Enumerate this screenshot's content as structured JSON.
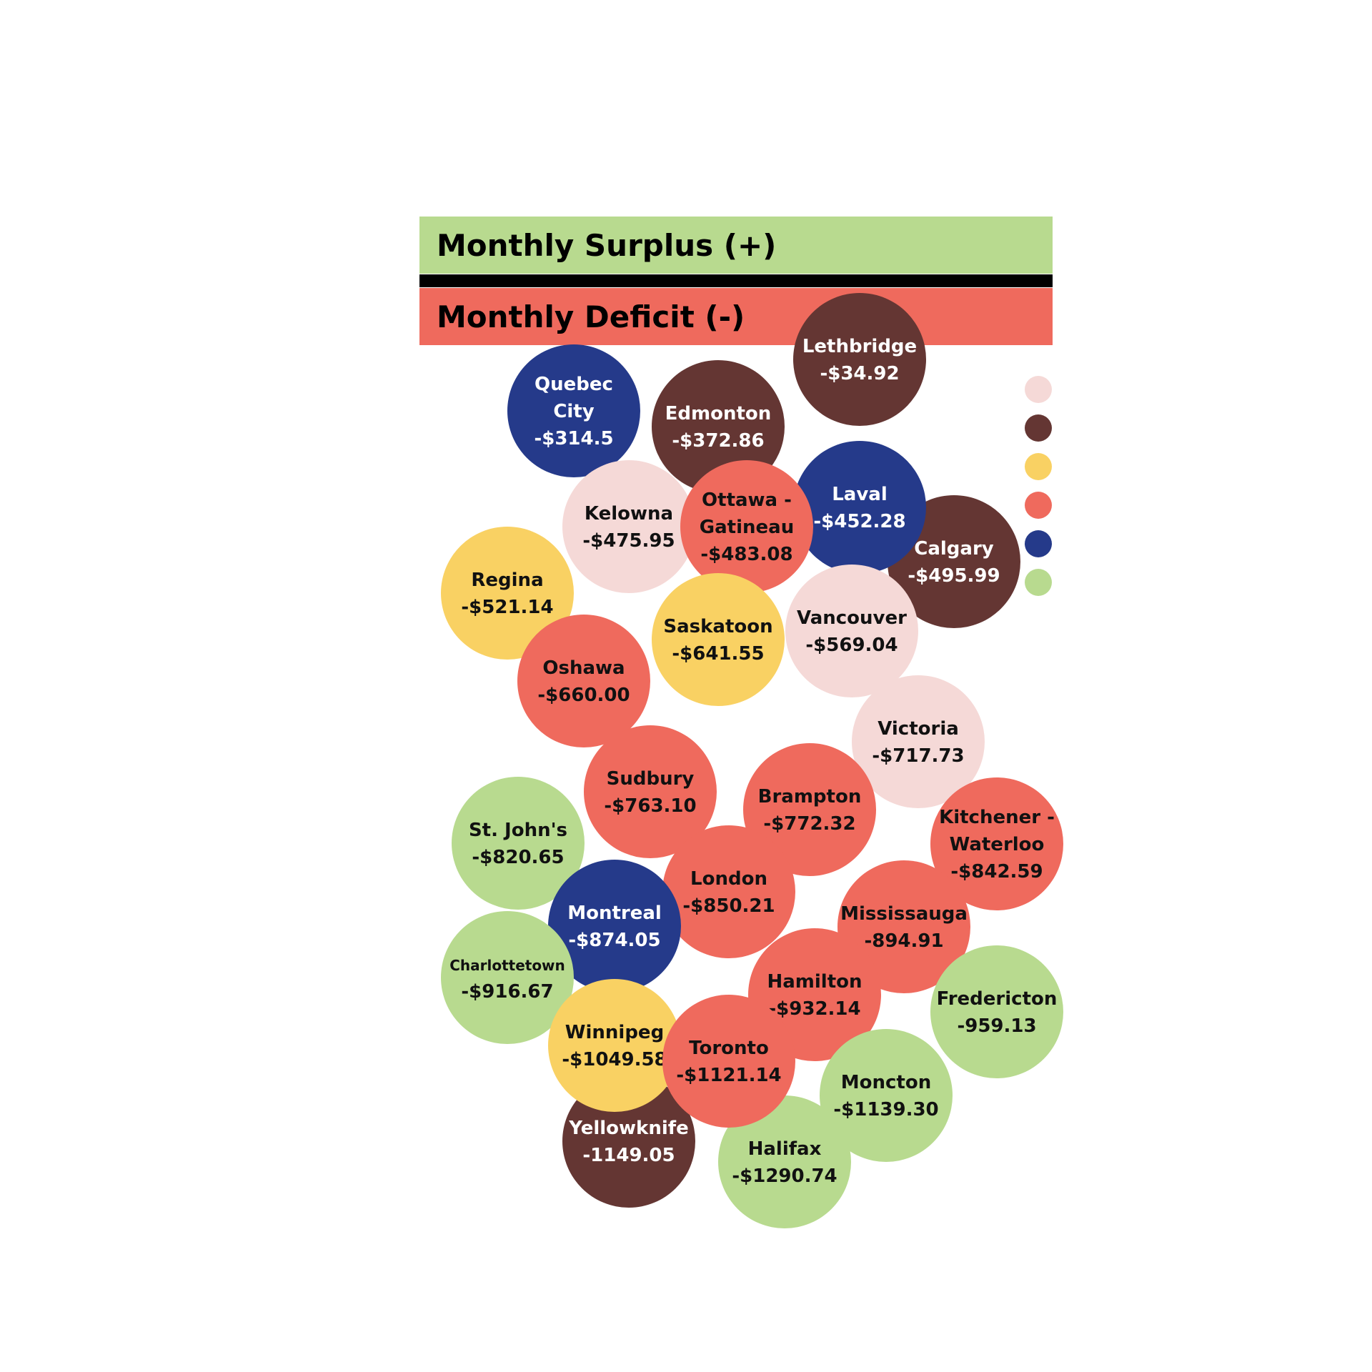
{
  "header": {
    "surplus_label": "Monthly Surplus (+)",
    "deficit_label": "Monthly Deficit (-)"
  },
  "colors": {
    "surplus": "#b8da8f",
    "deficit": "#ef6a5d",
    "divider": "#000000",
    "light_pink": "#f5d9d7",
    "brown": "#643633",
    "yellow": "#f9d163",
    "salmon": "#ef6a5d",
    "navy": "#253a8a",
    "green": "#b8da8f"
  },
  "legend": {
    "swatches": [
      "light_pink",
      "brown",
      "yellow",
      "salmon",
      "navy",
      "green"
    ]
  },
  "chart_data": {
    "type": "bubble",
    "title": "",
    "bubbles": [
      {
        "name": "Lethbridge",
        "label": "-$34.92",
        "value": -34.92,
        "color": "brown"
      },
      {
        "name": "Quebec City",
        "label": "-$314.5",
        "value": -314.5,
        "color": "navy"
      },
      {
        "name": "Edmonton",
        "label": "-$372.86",
        "value": -372.86,
        "color": "brown"
      },
      {
        "name": "Laval",
        "label": "-$452.28",
        "value": -452.28,
        "color": "navy"
      },
      {
        "name": "Kelowna",
        "label": "-$475.95",
        "value": -475.95,
        "color": "light_pink"
      },
      {
        "name": "Ottawa - Gatineau",
        "label": "-$483.08",
        "value": -483.08,
        "color": "salmon"
      },
      {
        "name": "Calgary",
        "label": "-$495.99",
        "value": -495.99,
        "color": "brown"
      },
      {
        "name": "Regina",
        "label": "-$521.14",
        "value": -521.14,
        "color": "yellow"
      },
      {
        "name": "Vancouver",
        "label": "-$569.04",
        "value": -569.04,
        "color": "light_pink"
      },
      {
        "name": "Saskatoon",
        "label": "-$641.55",
        "value": -641.55,
        "color": "yellow"
      },
      {
        "name": "Oshawa",
        "label": "-$660.00",
        "value": -660.0,
        "color": "salmon"
      },
      {
        "name": "Victoria",
        "label": "-$717.73",
        "value": -717.73,
        "color": "light_pink"
      },
      {
        "name": "Sudbury",
        "label": "-$763.10",
        "value": -763.1,
        "color": "salmon"
      },
      {
        "name": "Brampton",
        "label": "-$772.32",
        "value": -772.32,
        "color": "salmon"
      },
      {
        "name": "St. John's",
        "label": "-$820.65",
        "value": -820.65,
        "color": "green"
      },
      {
        "name": "Kitchener - Waterloo",
        "label": "-$842.59",
        "value": -842.59,
        "color": "salmon"
      },
      {
        "name": "London",
        "label": "-$850.21",
        "value": -850.21,
        "color": "salmon"
      },
      {
        "name": "Montreal",
        "label": "-$874.05",
        "value": -874.05,
        "color": "navy"
      },
      {
        "name": "Mississauga",
        "label": "-894.91",
        "value": -894.91,
        "color": "salmon"
      },
      {
        "name": "Charlottetown",
        "label": "-$916.67",
        "value": -916.67,
        "color": "green"
      },
      {
        "name": "Hamilton",
        "label": "-$932.14",
        "value": -932.14,
        "color": "salmon"
      },
      {
        "name": "Fredericton",
        "label": "-959.13",
        "value": -959.13,
        "color": "green"
      },
      {
        "name": "Winnipeg",
        "label": "-$1049.58",
        "value": -1049.58,
        "color": "yellow"
      },
      {
        "name": "Toronto",
        "label": "-$1121.14",
        "value": -1121.14,
        "color": "salmon"
      },
      {
        "name": "Moncton",
        "label": "-$1139.30",
        "value": -1139.3,
        "color": "green"
      },
      {
        "name": "Yellowknife",
        "label": "-1149.05",
        "value": -1149.05,
        "color": "brown"
      },
      {
        "name": "Halifax",
        "label": "-$1290.74",
        "value": -1290.74,
        "color": "green"
      }
    ]
  }
}
